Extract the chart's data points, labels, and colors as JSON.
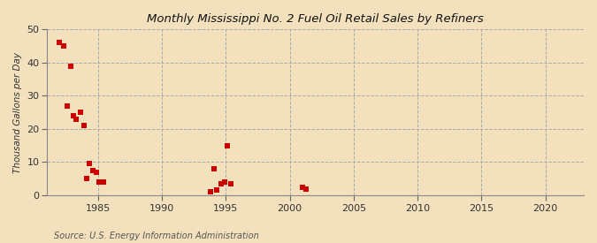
{
  "title": "Monthly Mississippi No. 2 Fuel Oil Retail Sales by Refiners",
  "ylabel": "Thousand Gallons per Day",
  "source": "Source: U.S. Energy Information Administration",
  "background_color": "#f3e0bc",
  "plot_background_color": "#f3e0bc",
  "marker_color": "#cc0000",
  "marker_size": 16,
  "xlim": [
    1981,
    2023
  ],
  "ylim": [
    0,
    50
  ],
  "yticks": [
    0,
    10,
    20,
    30,
    40,
    50
  ],
  "xticks": [
    1985,
    1990,
    1995,
    2000,
    2005,
    2010,
    2015,
    2020
  ],
  "x_data": [
    1982.0,
    1982.3,
    1982.6,
    1982.9,
    1983.1,
    1983.3,
    1983.6,
    1983.9,
    1984.1,
    1984.3,
    1984.6,
    1984.9,
    1985.1,
    1985.4,
    1993.8,
    1994.1,
    1994.3,
    1994.6,
    1994.9,
    1995.1,
    1995.4,
    2001.0,
    2001.3
  ],
  "y_data": [
    46.0,
    45.0,
    27.0,
    39.0,
    24.0,
    23.0,
    25.0,
    21.0,
    5.0,
    9.5,
    7.5,
    7.0,
    4.0,
    4.0,
    1.0,
    8.0,
    1.5,
    3.5,
    4.0,
    15.0,
    3.5,
    2.5,
    2.0
  ]
}
